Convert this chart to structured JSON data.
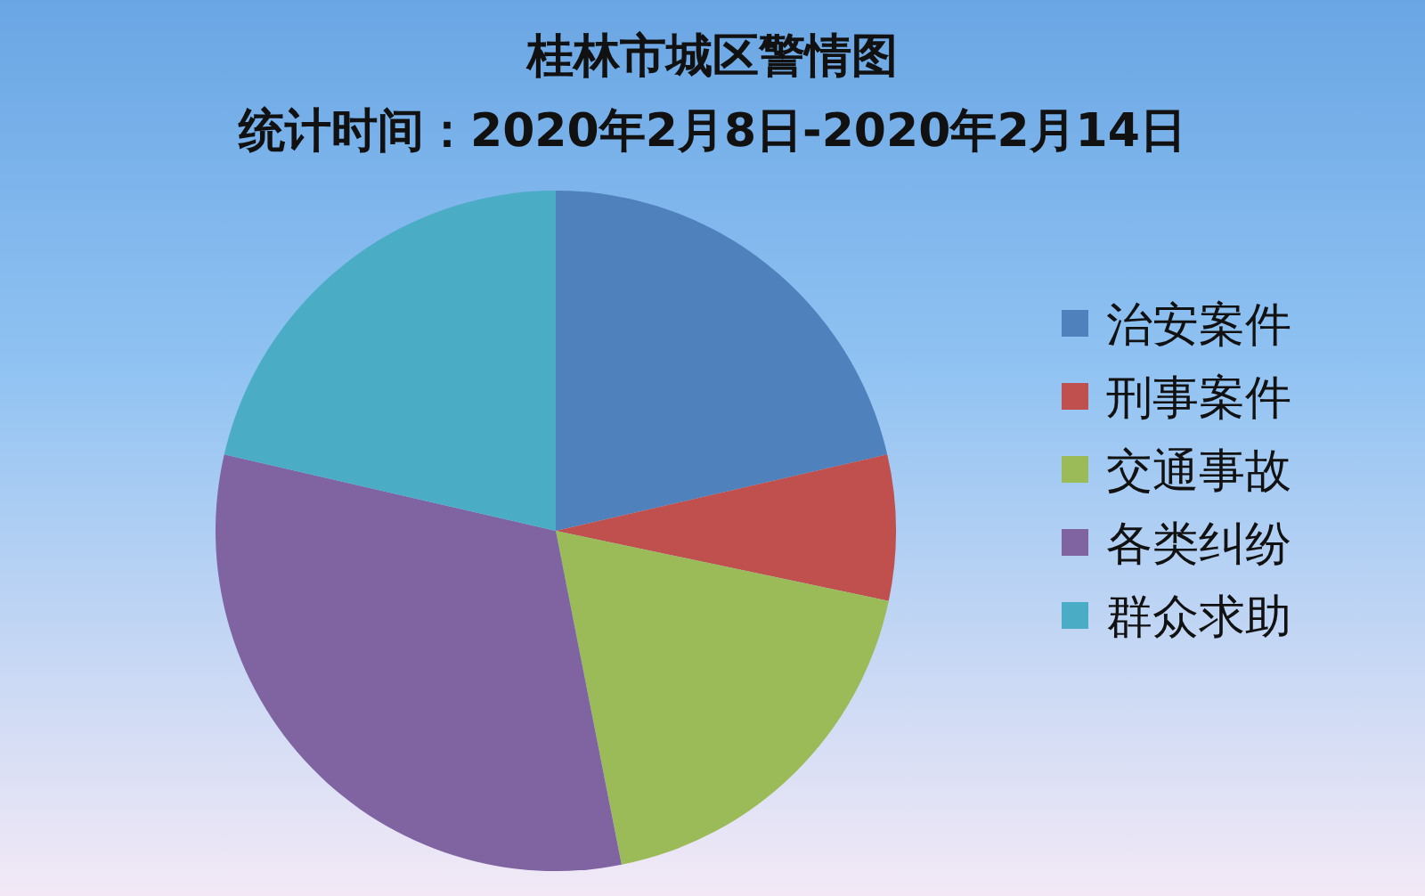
{
  "chart_data": {
    "type": "pie",
    "title": "桂林市城区警情图",
    "subtitle": "统计时间：2020年2月8日-2020年2月14日",
    "categories": [
      "治安案件",
      "刑事案件",
      "交通事故",
      "各类纠纷",
      "群众求助"
    ],
    "values": [
      21.4,
      6.9,
      18.6,
      31.7,
      21.4
    ],
    "colors": [
      "#4f81bd",
      "#c0504d",
      "#9bbb59",
      "#8064a2",
      "#4bacc6"
    ],
    "legend": "right"
  }
}
